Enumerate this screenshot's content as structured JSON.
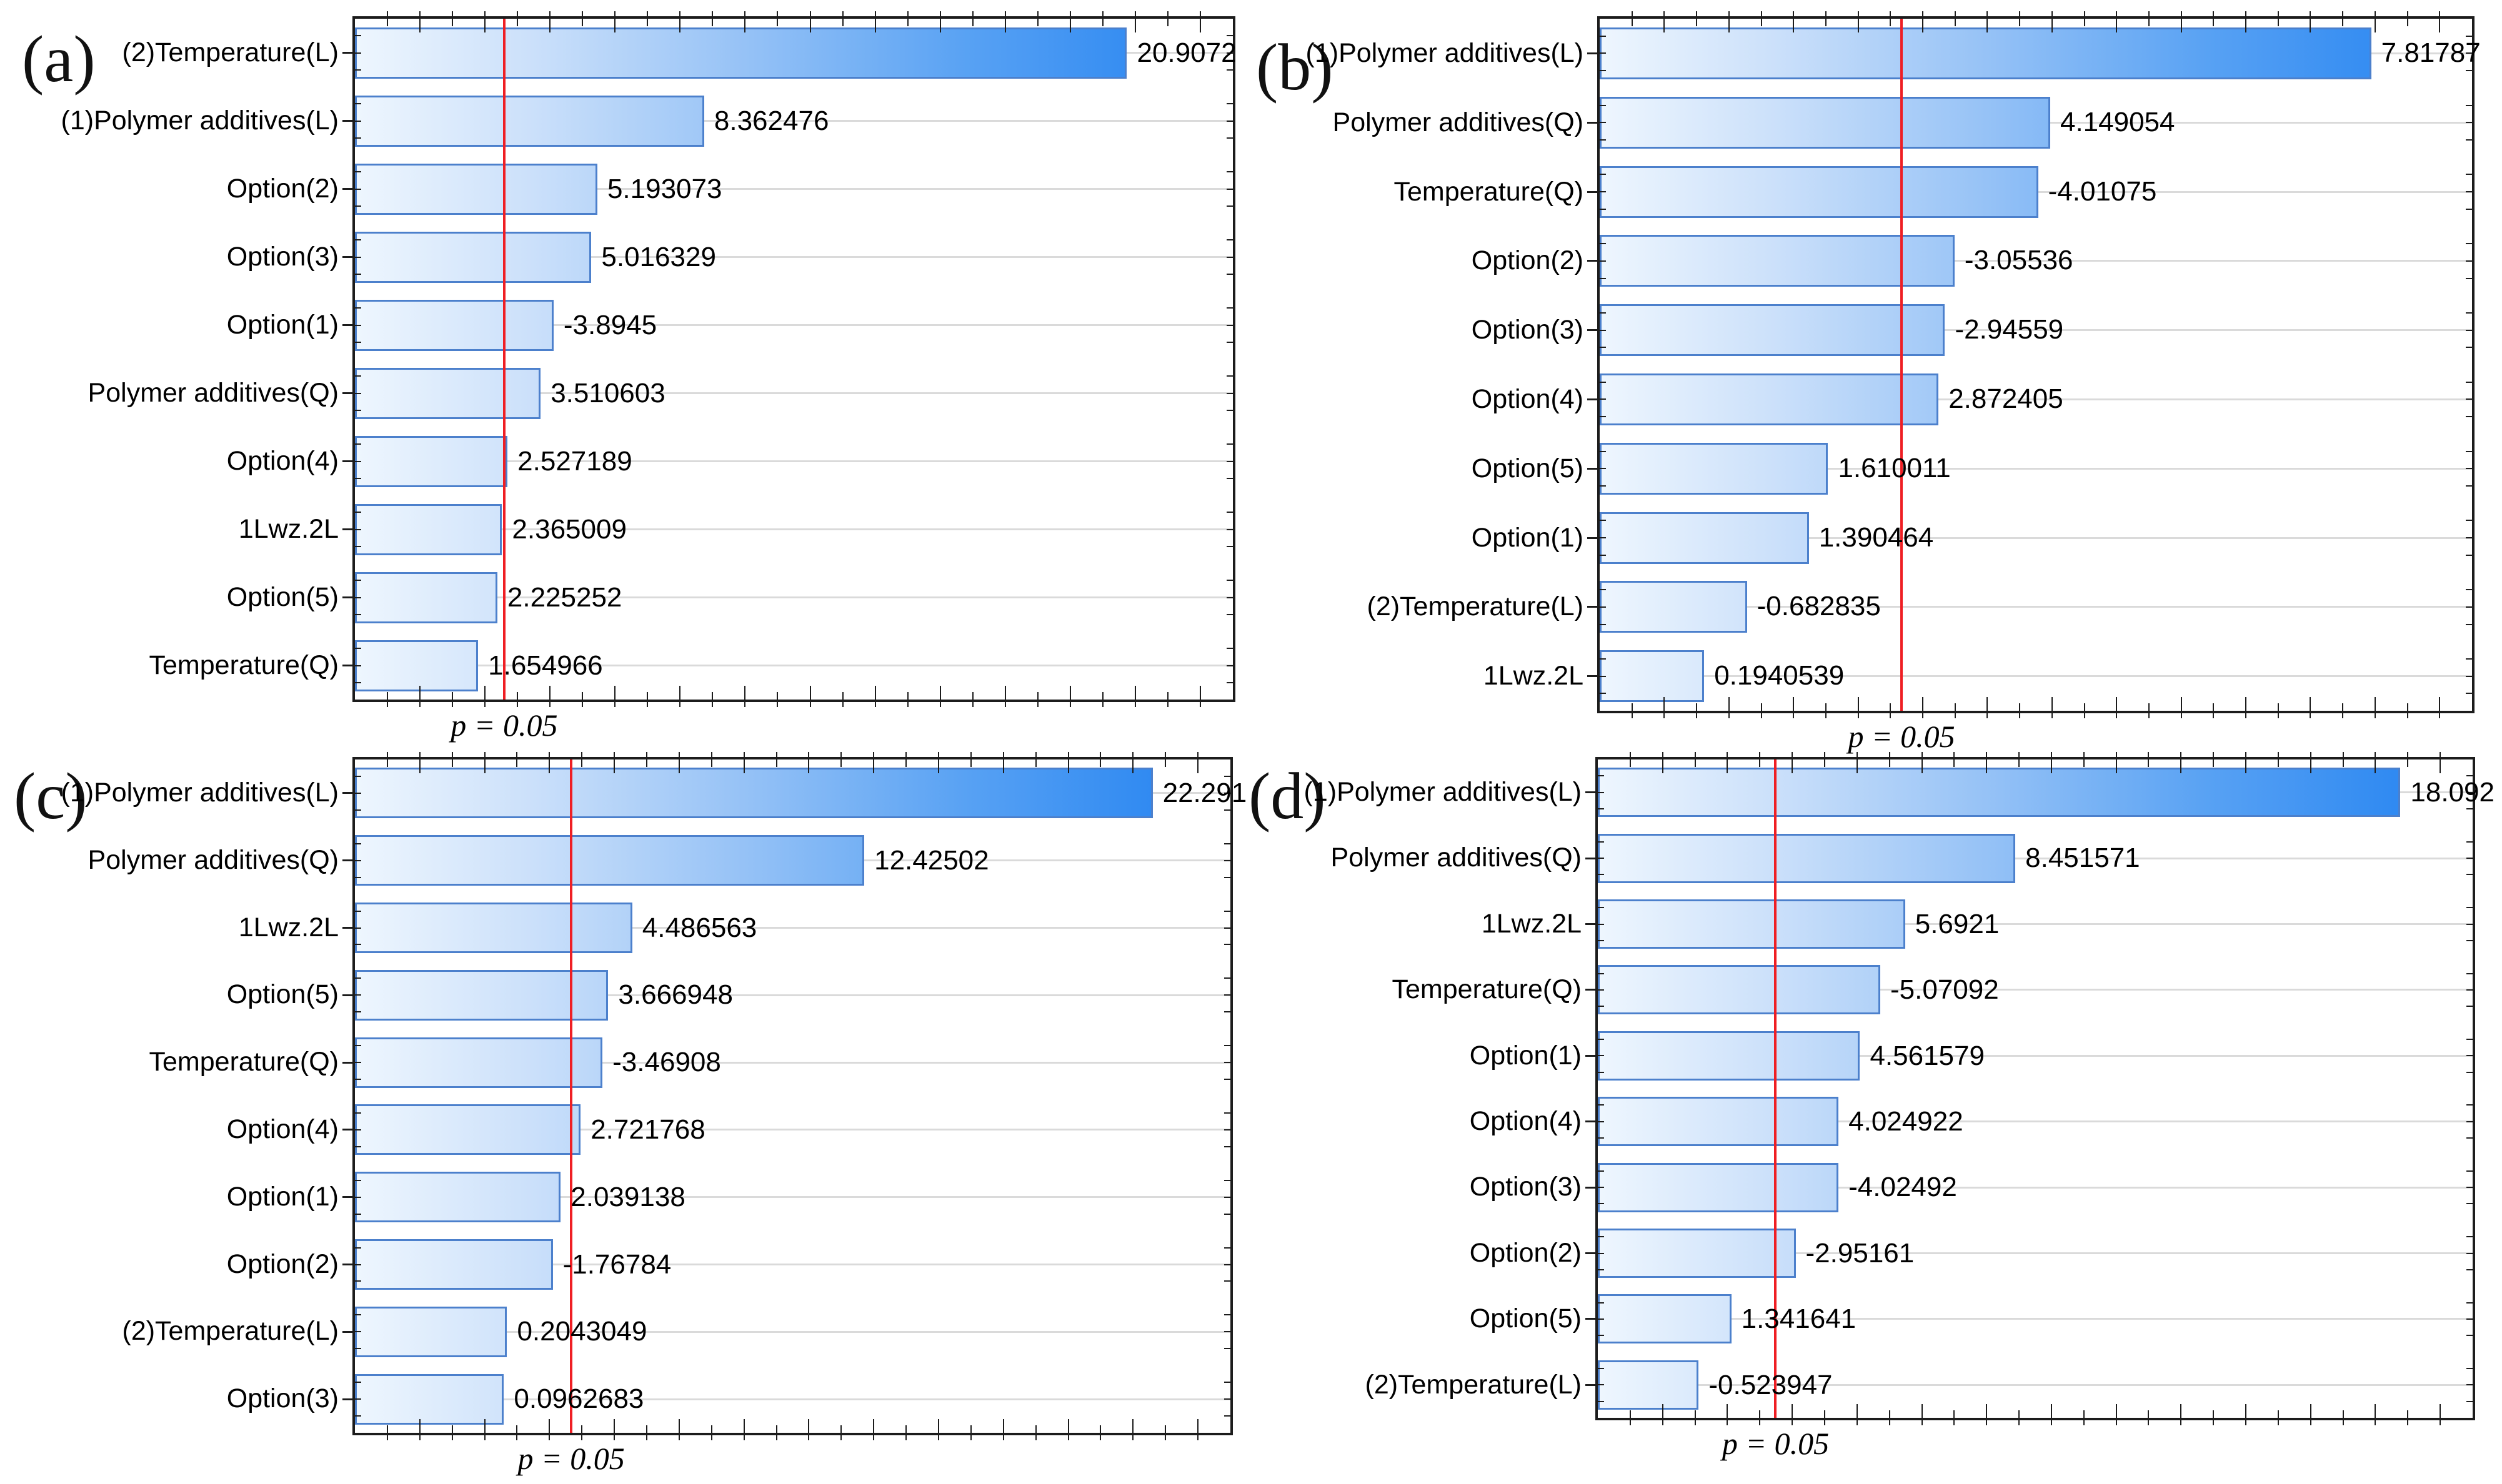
{
  "figure": {
    "background": "#ffffff",
    "description_colors": {
      "bar_border": "#4c80cc",
      "bar_gradient_stops": [
        "#eef6fe",
        "#cbe0fa",
        "#94c1f6",
        "#57a1f3",
        "#1f80f2"
      ],
      "significance_line": "#ef1f24",
      "gridline": "#dadada",
      "axis": "#1c1c1c",
      "text": "#000000"
    }
  },
  "chart_data": [
    {
      "type": "bar",
      "orientation": "horizontal",
      "panel_letter": "(a)",
      "title": "",
      "xlabel": "",
      "ylabel": "",
      "legend": null,
      "grid": "horizontal-light",
      "axis_range": [
        -2.0,
        24.05
      ],
      "significance_line_value": 2.43,
      "significance_label": "p = 0.05",
      "categories": [
        "(2)Temperature(L)",
        "(1)Polymer additives(L)",
        "Option(2)",
        "Option(3)",
        "Option(1)",
        "Polymer additives(Q)",
        "Option(4)",
        "1Lwz.2L",
        "Option(5)",
        "Temperature(Q)"
      ],
      "values": [
        20.9072,
        8.362476,
        5.193073,
        5.016329,
        -3.8945,
        3.510603,
        2.527189,
        2.365009,
        2.225252,
        1.654966
      ],
      "value_labels": [
        "20.9072",
        "8.362476",
        "5.193073",
        "5.016329",
        "-3.8945",
        "3.510603",
        "2.527189",
        "2.365009",
        "2.225252",
        "1.654966"
      ]
    },
    {
      "type": "bar",
      "orientation": "horizontal",
      "panel_letter": "(b)",
      "title": "",
      "xlabel": "",
      "ylabel": "",
      "legend": null,
      "grid": "horizontal-light",
      "axis_range": [
        -1.0,
        8.97
      ],
      "significance_line_value": 2.45,
      "significance_label": "p = 0.05",
      "categories": [
        "(1)Polymer additives(L)",
        "Polymer additives(Q)",
        "Temperature(Q)",
        "Option(2)",
        "Option(3)",
        "Option(4)",
        "Option(5)",
        "Option(1)",
        "(2)Temperature(L)",
        "1Lwz.2L"
      ],
      "values": [
        7.81787,
        4.149054,
        -4.01075,
        -3.05536,
        -2.94559,
        2.872405,
        1.610011,
        1.390464,
        -0.682835,
        0.1940539
      ],
      "value_labels": [
        "7.81787",
        "4.149054",
        "-4.01075",
        "-3.05536",
        "-2.94559",
        "2.872405",
        "1.610011",
        "1.390464",
        "-0.682835",
        "0.1940539"
      ]
    },
    {
      "type": "bar",
      "orientation": "horizontal",
      "panel_letter": "(c)",
      "title": "",
      "xlabel": "",
      "ylabel": "",
      "legend": null,
      "grid": "horizontal-light",
      "axis_range": [
        -5.0,
        24.95
      ],
      "significance_line_value": 2.4,
      "significance_label": "p = 0.05",
      "categories": [
        "(1)Polymer additives(L)",
        "Polymer additives(Q)",
        "1Lwz.2L",
        "Option(5)",
        "Temperature(Q)",
        "Option(4)",
        "Option(1)",
        "Option(2)",
        "(2)Temperature(L)",
        "Option(3)"
      ],
      "values": [
        22.291,
        12.42502,
        4.486563,
        3.666948,
        -3.46908,
        2.721768,
        2.039138,
        -1.76784,
        0.2043049,
        0.0962683
      ],
      "value_labels": [
        "22.291",
        "12.42502",
        "4.486563",
        "3.666948",
        "-3.46908",
        "2.721768",
        "2.039138",
        "-1.76784",
        "0.2043049",
        "0.0962683"
      ]
    },
    {
      "type": "bar",
      "orientation": "horizontal",
      "panel_letter": "(d)",
      "title": "",
      "xlabel": "",
      "ylabel": "",
      "legend": null,
      "grid": "horizontal-light",
      "axis_range": [
        -2.0,
        19.9
      ],
      "significance_line_value": 2.45,
      "significance_label": "p = 0.05",
      "categories": [
        "(1)Polymer additives(L)",
        "Polymer additives(Q)",
        "1Lwz.2L",
        "Temperature(Q)",
        "Option(1)",
        "Option(4)",
        "Option(3)",
        "Option(2)",
        "Option(5)",
        "(2)Temperature(L)"
      ],
      "values": [
        18.092,
        8.451571,
        5.6921,
        -5.07092,
        4.561579,
        4.024922,
        -4.02492,
        -2.95161,
        1.341641,
        -0.523947
      ],
      "value_labels": [
        "18.092",
        "8.451571",
        "5.6921",
        "-5.07092",
        "4.561579",
        "4.024922",
        "-4.02492",
        "-2.95161",
        "1.341641",
        "-0.523947"
      ]
    }
  ]
}
